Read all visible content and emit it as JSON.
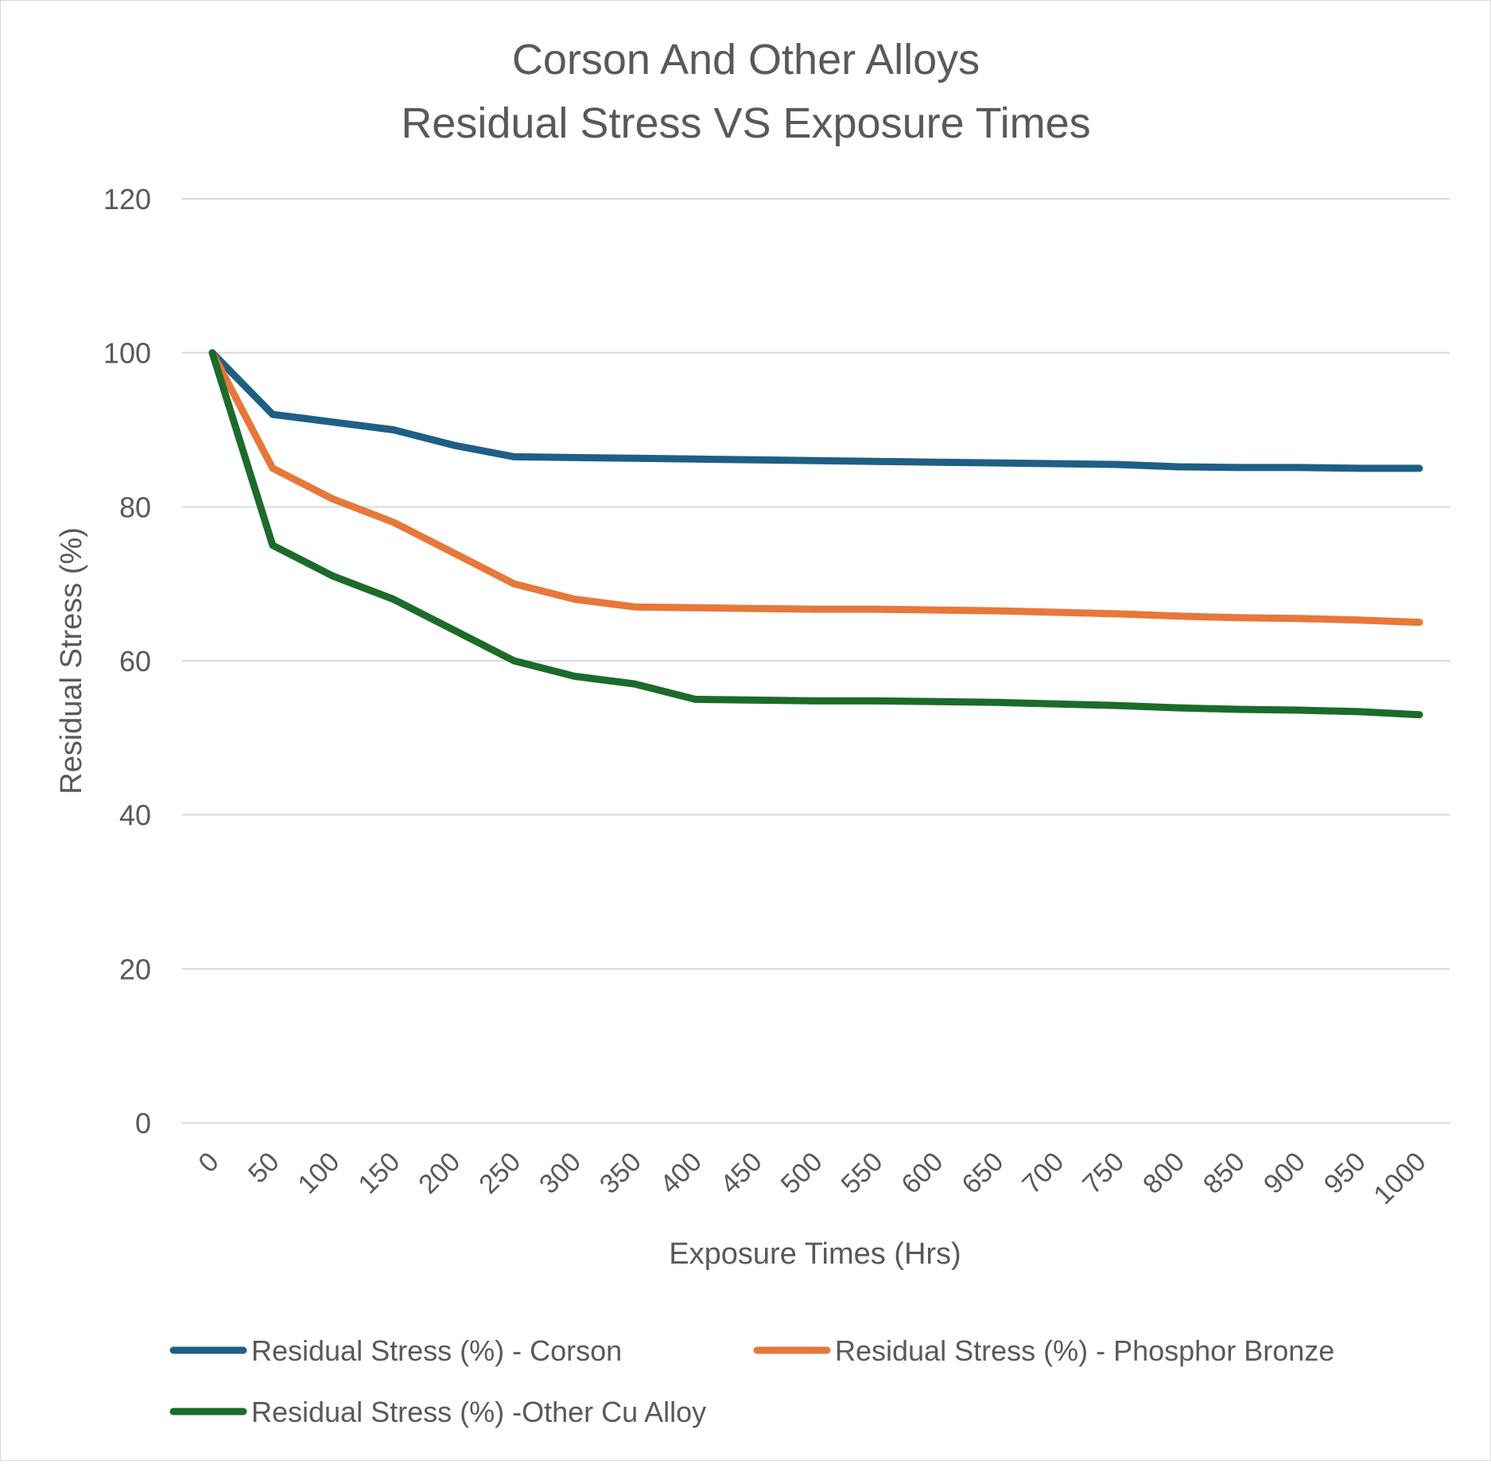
{
  "chart_data": {
    "type": "line",
    "title_lines": [
      "Corson And Other Alloys",
      "Residual Stress VS Exposure Times"
    ],
    "xlabel": "Exposure Times (Hrs)",
    "ylabel": "Residual Stress (%)",
    "categories": [
      "0",
      "50",
      "100",
      "150",
      "200",
      "250",
      "300",
      "350",
      "400",
      "450",
      "500",
      "550",
      "600",
      "650",
      "700",
      "750",
      "800",
      "850",
      "900",
      "950",
      "1000"
    ],
    "y_ticks": [
      0,
      20,
      40,
      60,
      80,
      100,
      120
    ],
    "ylim": [
      0,
      120
    ],
    "grid": true,
    "legend_position": "bottom",
    "series": [
      {
        "name": "Residual Stress (%) - Corson",
        "color": "#1f5f86",
        "values": [
          100,
          92,
          91,
          90,
          88,
          86.5,
          86.4,
          86.3,
          86.2,
          86.1,
          86,
          85.9,
          85.8,
          85.7,
          85.6,
          85.5,
          85.2,
          85.1,
          85.1,
          85,
          85
        ]
      },
      {
        "name": "Residual Stress (%) - Phosphor Bronze",
        "color": "#e8773a",
        "values": [
          100,
          85,
          81,
          78,
          74,
          70,
          68,
          67,
          66.9,
          66.8,
          66.7,
          66.7,
          66.6,
          66.5,
          66.3,
          66.1,
          65.8,
          65.6,
          65.5,
          65.3,
          65
        ]
      },
      {
        "name": "Residual Stress (%) -Other Cu Alloy",
        "color": "#1c6b2a",
        "values": [
          100,
          75,
          71,
          68,
          64,
          60,
          58,
          57,
          55,
          54.9,
          54.8,
          54.8,
          54.7,
          54.6,
          54.4,
          54.2,
          53.9,
          53.7,
          53.6,
          53.4,
          53
        ]
      }
    ]
  }
}
